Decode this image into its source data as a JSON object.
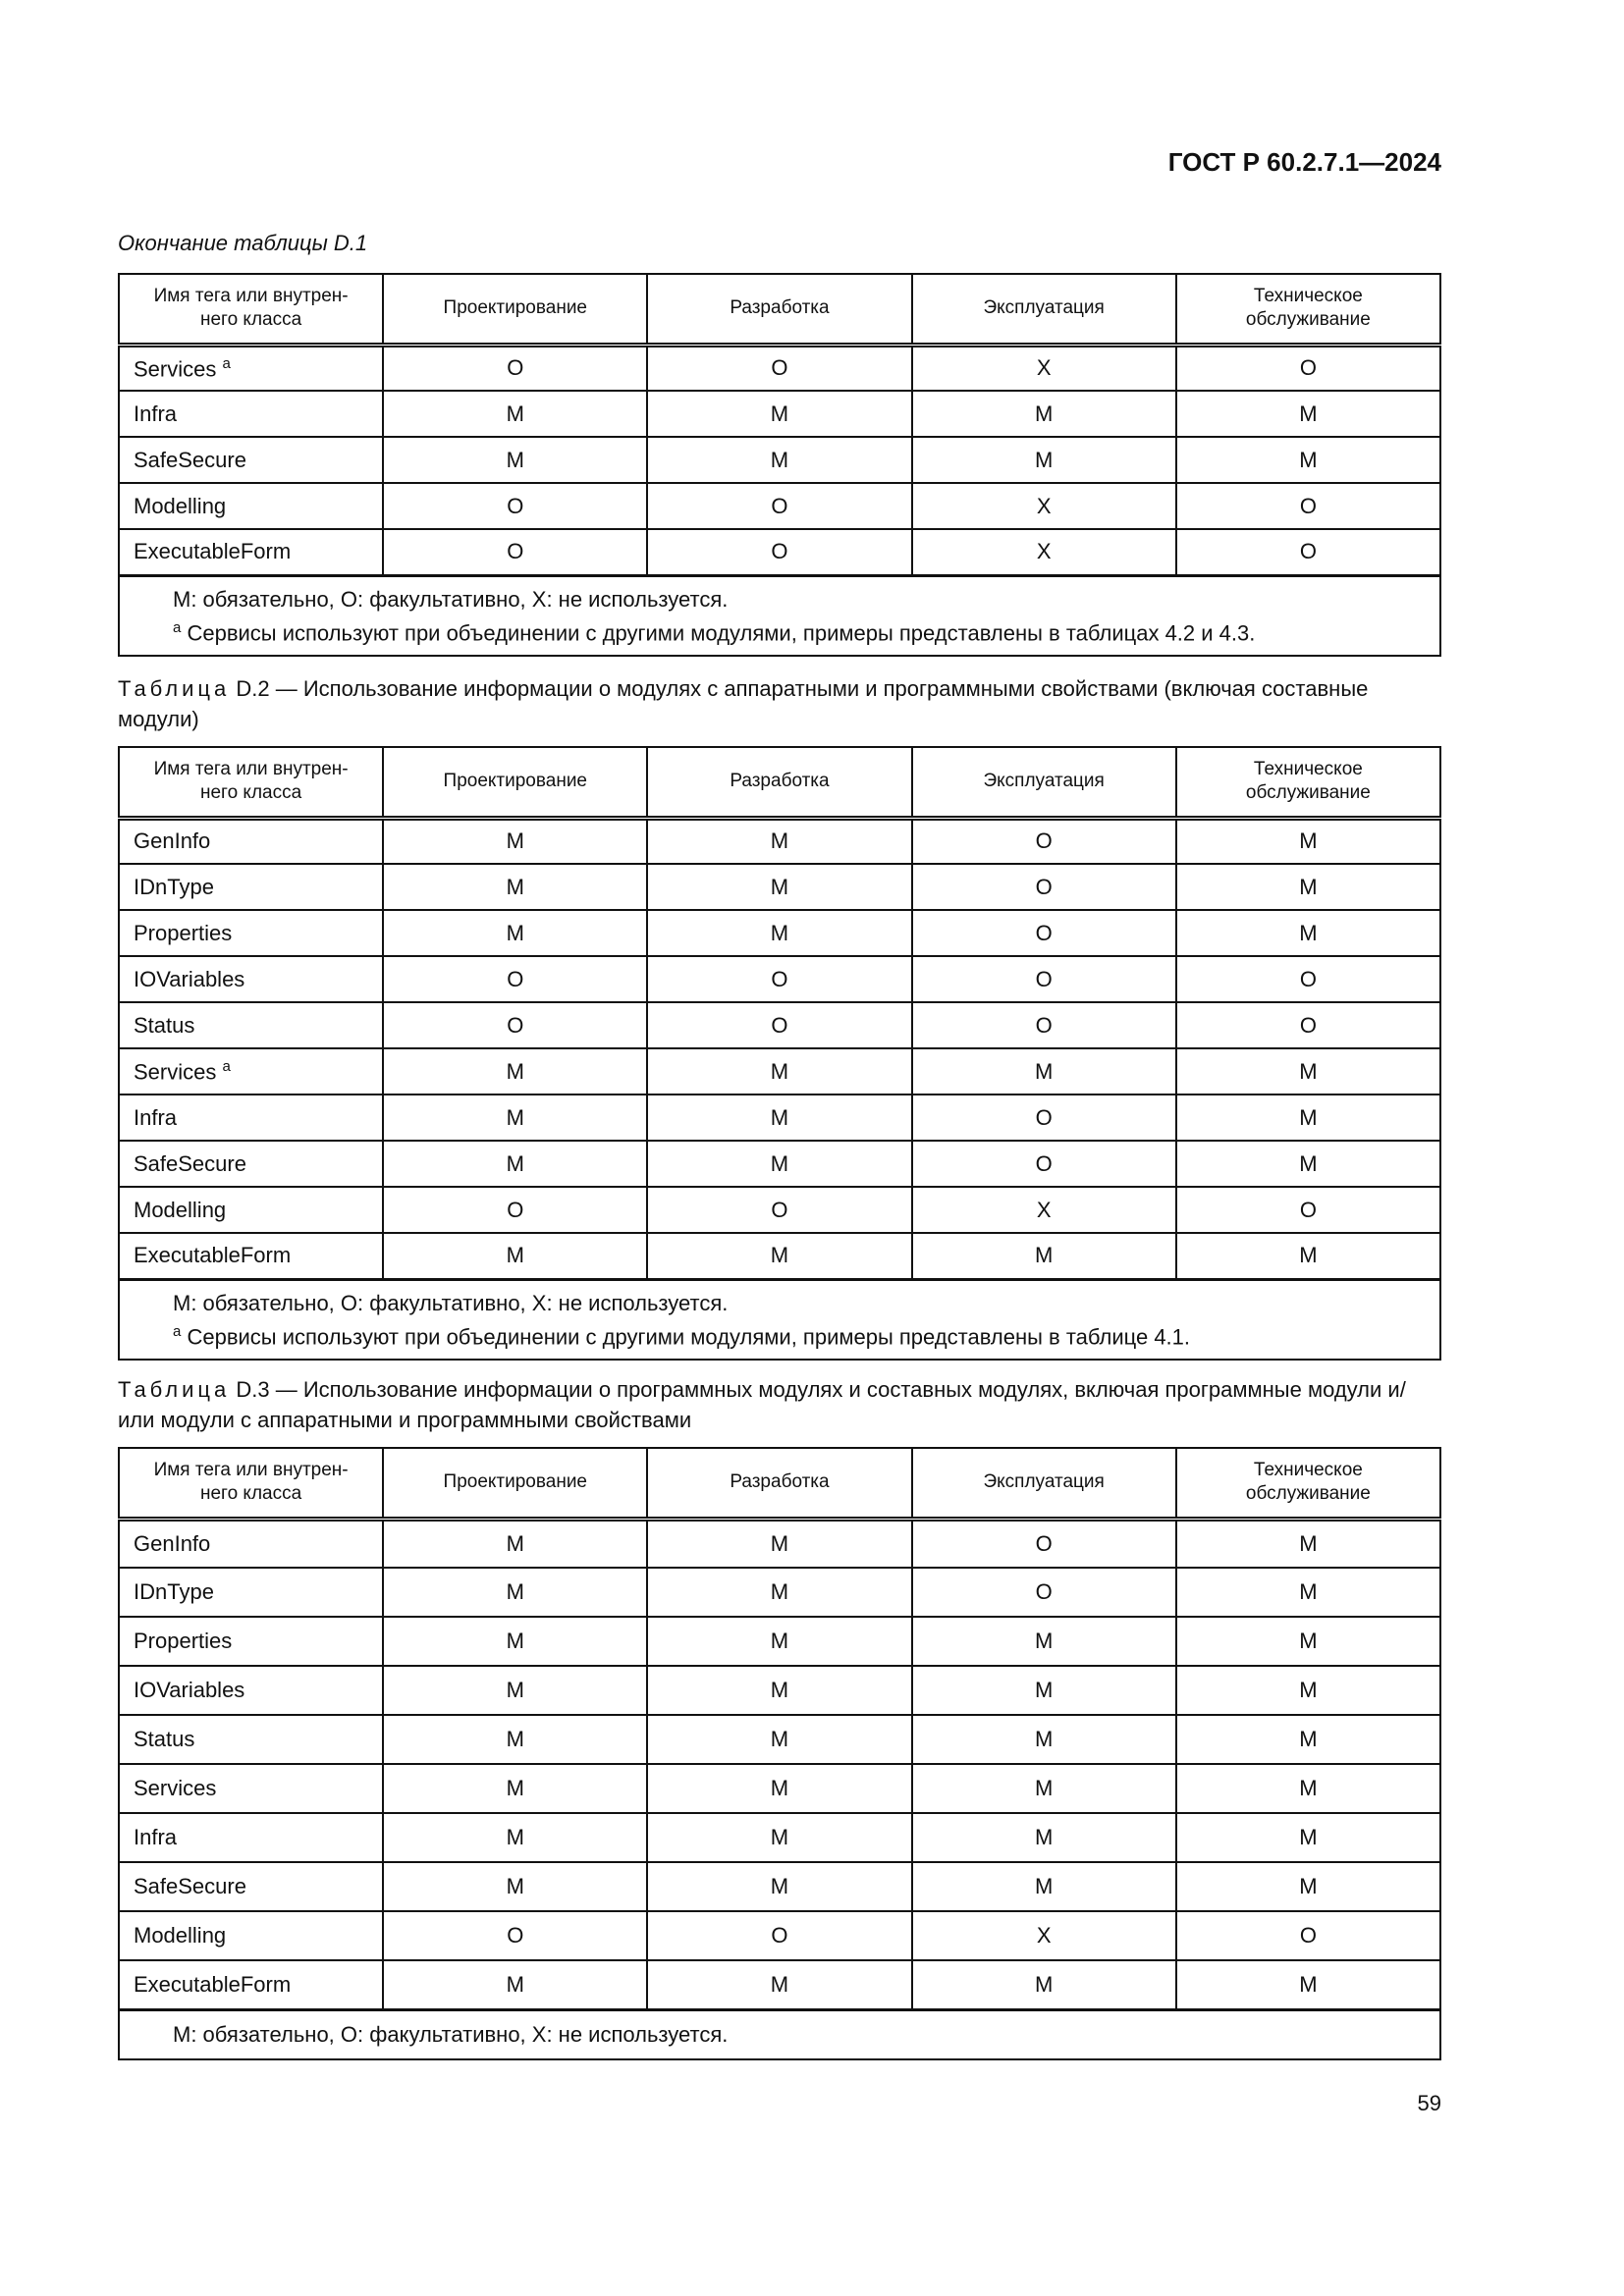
{
  "header": {
    "doc_id": "ГОСТ Р 60.2.7.1—2024"
  },
  "columns": [
    "Имя тега или внутрен-\nнего класса",
    "Проектирование",
    "Разработка",
    "Эксплуатация",
    "Техническое\nобслуживание"
  ],
  "tables": [
    {
      "caption_prefix": "",
      "caption": "Окончание таблицы D.1",
      "rows": [
        {
          "name": "Services",
          "sup": "a",
          "values": [
            "O",
            "O",
            "X",
            "O"
          ]
        },
        {
          "name": "Infra",
          "values": [
            "M",
            "M",
            "M",
            "M"
          ]
        },
        {
          "name": "SafeSecure",
          "values": [
            "M",
            "M",
            "M",
            "M"
          ]
        },
        {
          "name": "Modelling",
          "values": [
            "O",
            "O",
            "X",
            "O"
          ]
        },
        {
          "name": "ExecutableForm",
          "values": [
            "O",
            "O",
            "X",
            "O"
          ]
        }
      ],
      "notes": [
        "M: обязательно, O: факультативно, X: не используется.",
        "Сервисы используют при объединении с другими модулями, примеры представлены в таблицах 4.2 и 4.3."
      ],
      "note_sup": "a"
    },
    {
      "caption_prefix": "Таблица",
      "caption": " D.2 — Использование информации о модулях с аппаратными и программными свойствами (включая составные модули)",
      "rows": [
        {
          "name": "GenInfo",
          "values": [
            "M",
            "M",
            "O",
            "M"
          ]
        },
        {
          "name": "IDnType",
          "values": [
            "M",
            "M",
            "O",
            "M"
          ]
        },
        {
          "name": "Properties",
          "values": [
            "M",
            "M",
            "O",
            "M"
          ]
        },
        {
          "name": "IOVariables",
          "values": [
            "O",
            "O",
            "O",
            "O"
          ]
        },
        {
          "name": "Status",
          "values": [
            "O",
            "O",
            "O",
            "O"
          ]
        },
        {
          "name": "Services",
          "sup": "a",
          "values": [
            "M",
            "M",
            "M",
            "M"
          ]
        },
        {
          "name": "Infra",
          "values": [
            "M",
            "M",
            "O",
            "M"
          ]
        },
        {
          "name": "SafeSecure",
          "values": [
            "M",
            "M",
            "O",
            "M"
          ]
        },
        {
          "name": "Modelling",
          "values": [
            "O",
            "O",
            "X",
            "O"
          ]
        },
        {
          "name": "ExecutableForm",
          "values": [
            "M",
            "M",
            "M",
            "M"
          ]
        }
      ],
      "notes": [
        "M: обязательно, O: факультативно, X: не используется.",
        "Сервисы используют при объединении с другими модулями, примеры представлены в таблице 4.1."
      ],
      "note_sup": "a"
    },
    {
      "caption_prefix": "Таблица",
      "caption": " D.3 — Использование информации о программных модулях и составных модулях, включая программ­ные модули и/или модули с аппаратными и программными свойствами",
      "rows": [
        {
          "name": "GenInfo",
          "values": [
            "M",
            "M",
            "O",
            "M"
          ]
        },
        {
          "name": "IDnType",
          "values": [
            "M",
            "M",
            "O",
            "M"
          ]
        },
        {
          "name": "Properties",
          "values": [
            "M",
            "M",
            "M",
            "M"
          ]
        },
        {
          "name": "IOVariables",
          "values": [
            "M",
            "M",
            "M",
            "M"
          ]
        },
        {
          "name": "Status",
          "values": [
            "M",
            "M",
            "M",
            "M"
          ]
        },
        {
          "name": "Services",
          "values": [
            "M",
            "M",
            "M",
            "M"
          ]
        },
        {
          "name": "Infra",
          "values": [
            "M",
            "M",
            "M",
            "M"
          ]
        },
        {
          "name": "SafeSecure",
          "values": [
            "M",
            "M",
            "M",
            "M"
          ]
        },
        {
          "name": "Modelling",
          "values": [
            "O",
            "O",
            "X",
            "O"
          ]
        },
        {
          "name": "ExecutableForm",
          "values": [
            "M",
            "M",
            "M",
            "M"
          ]
        }
      ],
      "notes": [
        "M: обязательно, O: факультативно, X: не используется."
      ]
    }
  ],
  "footer": {
    "page_number": "59"
  }
}
